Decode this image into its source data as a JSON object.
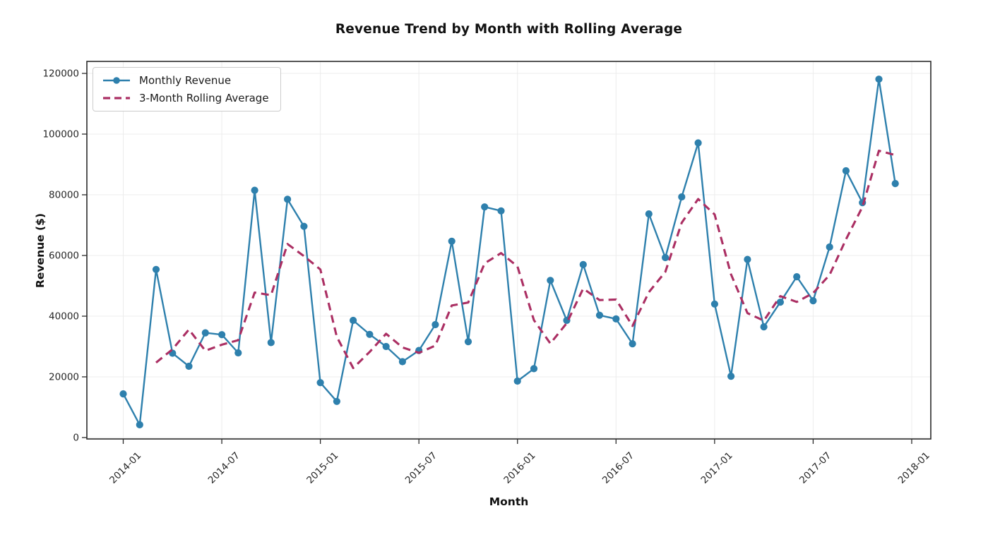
{
  "chart_data": {
    "type": "line",
    "title": "Revenue Trend by Month with Rolling Average",
    "xlabel": "Month",
    "ylabel": "Revenue ($)",
    "x_tick_labels": [
      "2014-01",
      "2014-07",
      "2015-01",
      "2015-07",
      "2016-01",
      "2016-07",
      "2017-01",
      "2017-07",
      "2018-01"
    ],
    "y_ticks": [
      0,
      20000,
      40000,
      60000,
      80000,
      100000,
      120000
    ],
    "ylim": [
      0,
      124000
    ],
    "grid": true,
    "legend_position": "upper left",
    "background": "#ffffff",
    "grid_color": "#ececec",
    "axis_color": "#2b2b2b",
    "months": [
      "2014-01",
      "2014-02",
      "2014-03",
      "2014-04",
      "2014-05",
      "2014-06",
      "2014-07",
      "2014-08",
      "2014-09",
      "2014-10",
      "2014-11",
      "2014-12",
      "2015-01",
      "2015-02",
      "2015-03",
      "2015-04",
      "2015-05",
      "2015-06",
      "2015-07",
      "2015-08",
      "2015-09",
      "2015-10",
      "2015-11",
      "2015-12",
      "2016-01",
      "2016-02",
      "2016-03",
      "2016-04",
      "2016-05",
      "2016-06",
      "2016-07",
      "2016-08",
      "2016-09",
      "2016-10",
      "2016-11",
      "2016-12",
      "2017-01",
      "2017-02",
      "2017-03",
      "2017-04",
      "2017-05",
      "2017-06",
      "2017-07",
      "2017-08",
      "2017-09",
      "2017-10",
      "2017-11",
      "2017-12"
    ],
    "series": [
      {
        "name": "Monthly Revenue",
        "color": "#2e80ad",
        "style": "solid",
        "markers": "circle",
        "values": [
          14400,
          4200,
          55400,
          27800,
          23500,
          34500,
          33900,
          27900,
          81500,
          31300,
          78500,
          69600,
          18100,
          11900,
          38600,
          34000,
          30000,
          25000,
          28700,
          37200,
          64700,
          31600,
          76000,
          74700,
          18600,
          22700,
          51800,
          38600,
          57000,
          40300,
          39100,
          30900,
          73700,
          59300,
          79300,
          97100,
          44000,
          20200,
          58700,
          36500,
          44600,
          53000,
          45100,
          62800,
          87900,
          77400,
          118100,
          83700
        ]
      },
      {
        "name": "3-Month Rolling Average",
        "color": "#ab2f63",
        "style": "dashed",
        "markers": "none",
        "values": [
          null,
          null,
          24700,
          29100,
          35600,
          28600,
          30600,
          32100,
          47800,
          46900,
          63800,
          59800,
          55400,
          33200,
          22900,
          28200,
          34200,
          29700,
          27900,
          30300,
          43500,
          44500,
          57400,
          60800,
          56400,
          38700,
          31000,
          37700,
          49100,
          45300,
          45500,
          36800,
          47900,
          54600,
          70800,
          78600,
          73500,
          53800,
          41000,
          38500,
          46600,
          44700,
          47600,
          53600,
          65300,
          76000,
          94500,
          93100
        ]
      }
    ]
  }
}
